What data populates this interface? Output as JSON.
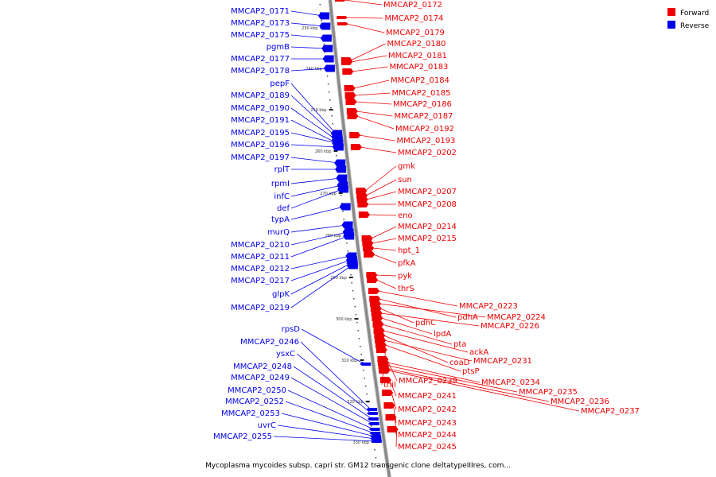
{
  "caption": "Mycoplasma mycoides subsp. capri str. GM12 transgenic clone deltatypeIIIres, com...",
  "colors": {
    "forward": "#ee0000",
    "reverse": "#0000ee",
    "backbone": "#888888"
  },
  "legend": {
    "forward": "Forward",
    "reverse": "Reverse"
  },
  "ticks": [
    "230 kbp",
    "240 kbp",
    "250 kbp",
    "260 kbp",
    "270 kbp",
    "280 kbp",
    "290 kbp",
    "300 kbp",
    "310 kbp",
    "320 kbp",
    "330 kbp"
  ],
  "reverse_genes": [
    "MMCAP2_0171",
    "MMCAP2_0173",
    "MMCAP2_0175",
    "pgmB",
    "MMCAP2_0177",
    "MMCAP2_0178",
    "pepF",
    "MMCAP2_0189",
    "MMCAP2_0190",
    "MMCAP2_0191",
    "MMCAP2_0195",
    "MMCAP2_0196",
    "MMCAP2_0197",
    "rplT",
    "rpmI",
    "infC",
    "def",
    "typA",
    "murQ",
    "MMCAP2_0210",
    "MMCAP2_0211",
    "MMCAP2_0212",
    "MMCAP2_0217",
    "glpK",
    "MMCAP2_0219",
    "rpsD",
    "MMCAP2_0246",
    "ysxC",
    "MMCAP2_0248",
    "MMCAP2_0249",
    "MMCAP2_0250",
    "MMCAP2_0252",
    "MMCAP2_0253",
    "uvrC",
    "MMCAP2_0255"
  ],
  "forward_genes": [
    "MMCAP2_0172",
    "MMCAP2_0174",
    "MMCAP2_0179",
    "MMCAP2_0180",
    "MMCAP2_0181",
    "MMCAP2_0183",
    "MMCAP2_0184",
    "MMCAP2_0185",
    "MMCAP2_0186",
    "MMCAP2_0187",
    "MMCAP2_0192",
    "MMCAP2_0193",
    "MMCAP2_0202",
    "gmk",
    "sun",
    "MMCAP2_0207",
    "MMCAP2_0208",
    "eno",
    "MMCAP2_0214",
    "MMCAP2_0215",
    "hpt_1",
    "pfkA",
    "pyk",
    "thrS",
    "MMCAP2_0223",
    "pdhA",
    "MMCAP2_0224",
    "pdhC",
    "MMCAP2_0226",
    "lpdA",
    "pta",
    "ackA",
    "coaD",
    "MMCAP2_0231",
    "ptsP",
    "thiI",
    "MMCAP2_0239",
    "MMCAP2_0234",
    "MMCAP2_0235",
    "MMCAP2_0236",
    "MMCAP2_0237",
    "MMCAP2_0241",
    "MMCAP2_0242",
    "MMCAP2_0243",
    "MMCAP2_0244",
    "MMCAP2_0245"
  ]
}
